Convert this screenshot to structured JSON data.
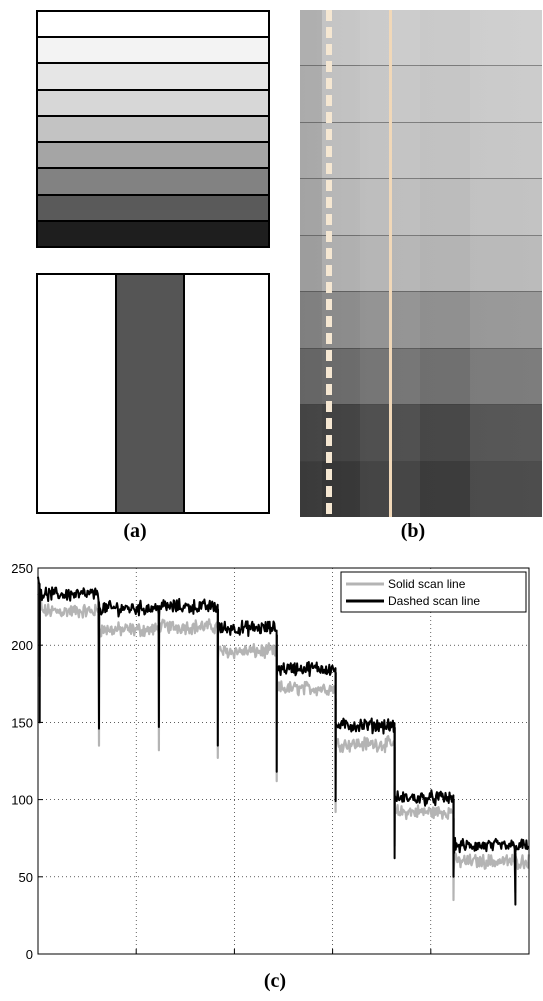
{
  "panels": {
    "a": {
      "caption": "(a)",
      "gray_levels": [
        255,
        243,
        230,
        215,
        195,
        165,
        130,
        90,
        30
      ],
      "bar_pattern": {
        "background": "#ffffff",
        "bar_color": "#555555"
      }
    },
    "b": {
      "caption": "(b)",
      "photo_levels": [
        200,
        196,
        192,
        186,
        178,
        142,
        110,
        70,
        58
      ],
      "scan_line_color": "#f2dcc0"
    },
    "c": {
      "caption": "(c)"
    }
  },
  "chart_data": {
    "type": "line",
    "title": "",
    "xlabel": "",
    "ylabel": "",
    "xlim": [
      0,
      2500
    ],
    "ylim": [
      0,
      250
    ],
    "xticks": [
      0,
      500,
      1000,
      1500,
      2000,
      2500
    ],
    "yticks": [
      0,
      50,
      100,
      150,
      200,
      250
    ],
    "grid": true,
    "grid_style": "dotted",
    "legend_position": "top-right",
    "series": [
      {
        "name": "Solid scan line",
        "color": "#b4b4b4",
        "segments": [
          {
            "x": [
              0,
              310
            ],
            "level": 222
          },
          {
            "x": [
              310,
              615
            ],
            "level": 210
          },
          {
            "x": [
              615,
              915
            ],
            "level": 212
          },
          {
            "x": [
              915,
              1215
            ],
            "level": 196
          },
          {
            "x": [
              1215,
              1515
            ],
            "level": 172
          },
          {
            "x": [
              1515,
              1815
            ],
            "level": 136
          },
          {
            "x": [
              1815,
              2115
            ],
            "level": 92
          },
          {
            "x": [
              2115,
              2500
            ],
            "level": 60
          }
        ],
        "dips": [
          [
            8,
            180
          ],
          [
            310,
            135
          ],
          [
            615,
            132
          ],
          [
            915,
            127
          ],
          [
            1215,
            112
          ],
          [
            1515,
            92
          ],
          [
            1815,
            70
          ],
          [
            2115,
            35
          ],
          [
            2430,
            40
          ]
        ]
      },
      {
        "name": "Dashed scan line",
        "color": "#000000",
        "segments": [
          {
            "x": [
              0,
              310
            ],
            "level": 233
          },
          {
            "x": [
              310,
              615
            ],
            "level": 224
          },
          {
            "x": [
              615,
              915
            ],
            "level": 225
          },
          {
            "x": [
              915,
              1215
            ],
            "level": 211
          },
          {
            "x": [
              1215,
              1515
            ],
            "level": 185
          },
          {
            "x": [
              1515,
              1815
            ],
            "level": 148
          },
          {
            "x": [
              1815,
              2115
            ],
            "level": 101
          },
          {
            "x": [
              2115,
              2500
            ],
            "level": 70
          }
        ],
        "dips": [
          [
            8,
            150
          ],
          [
            310,
            146
          ],
          [
            615,
            147
          ],
          [
            915,
            135
          ],
          [
            1215,
            118
          ],
          [
            1515,
            99
          ],
          [
            1815,
            62
          ],
          [
            2115,
            50
          ],
          [
            2430,
            32
          ]
        ]
      }
    ]
  }
}
